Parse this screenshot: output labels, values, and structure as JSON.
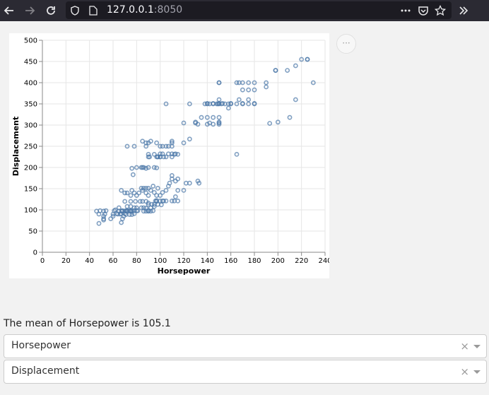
{
  "browser": {
    "url_host": "127.0.0.1",
    "url_port": ":8050",
    "back_icon": "arrow-left-icon",
    "forward_icon": "arrow-right-icon",
    "reload_icon": "reload-icon",
    "more_icon": "ellipsis-icon",
    "pocket_icon": "pocket-icon",
    "star_icon": "star-icon",
    "overflow_icon": "double-chevron-icon"
  },
  "colors": {
    "point": "#4c78a8",
    "toolbar": "#2b2a33"
  },
  "chart_menu_label": "···",
  "summary_text": "The mean of Horsepower is 105.1",
  "dropdowns": [
    {
      "value": "Horsepower",
      "clear": "×"
    },
    {
      "value": "Displacement",
      "clear": "×"
    }
  ],
  "chart_data": {
    "type": "scatter",
    "xlabel": "Horsepower",
    "ylabel": "Displacement",
    "xlim": [
      0,
      240
    ],
    "ylim": [
      0,
      500
    ],
    "xticks": [
      0,
      20,
      40,
      60,
      80,
      100,
      120,
      140,
      160,
      180,
      200,
      220,
      240
    ],
    "yticks": [
      0,
      50,
      100,
      150,
      200,
      250,
      300,
      350,
      400,
      450,
      500
    ],
    "grid": true,
    "marker": "hollow-circle",
    "points": [
      [
        46,
        97
      ],
      [
        48,
        90
      ],
      [
        49,
        98
      ],
      [
        52,
        97
      ],
      [
        52,
        85
      ],
      [
        53,
        90
      ],
      [
        54,
        98
      ],
      [
        48,
        68
      ],
      [
        52,
        79
      ],
      [
        52,
        76
      ],
      [
        58,
        79
      ],
      [
        60,
        85
      ],
      [
        60,
        90
      ],
      [
        61,
        98
      ],
      [
        62,
        100
      ],
      [
        63,
        91
      ],
      [
        64,
        90
      ],
      [
        65,
        97
      ],
      [
        65,
        105
      ],
      [
        66,
        90
      ],
      [
        67,
        97
      ],
      [
        67,
        91
      ],
      [
        67,
        70
      ],
      [
        68,
        97
      ],
      [
        68,
        98
      ],
      [
        68,
        79
      ],
      [
        69,
        85
      ],
      [
        70,
        97
      ],
      [
        70,
        91
      ],
      [
        70,
        120
      ],
      [
        71,
        98
      ],
      [
        71,
        89
      ],
      [
        72,
        97
      ],
      [
        72,
        98
      ],
      [
        72,
        108
      ],
      [
        74,
        98
      ],
      [
        74,
        89
      ],
      [
        75,
        97
      ],
      [
        75,
        98
      ],
      [
        75,
        108
      ],
      [
        75,
        120
      ],
      [
        76,
        89
      ],
      [
        76,
        97
      ],
      [
        78,
        91
      ],
      [
        78,
        98
      ],
      [
        78,
        105
      ],
      [
        79,
        120
      ],
      [
        80,
        98
      ],
      [
        80,
        105
      ],
      [
        81,
        98
      ],
      [
        83,
        120
      ],
      [
        84,
        105
      ],
      [
        85,
        120
      ],
      [
        86,
        105
      ],
      [
        86,
        97
      ],
      [
        88,
        97
      ],
      [
        88,
        120
      ],
      [
        88,
        104
      ],
      [
        90,
        97
      ],
      [
        90,
        98
      ],
      [
        90,
        112
      ],
      [
        90,
        116
      ],
      [
        92,
        97
      ],
      [
        92,
        105
      ],
      [
        93,
        113
      ],
      [
        94,
        98
      ],
      [
        95,
        108
      ],
      [
        95,
        113
      ],
      [
        96,
        121
      ],
      [
        97,
        120
      ],
      [
        98,
        113
      ],
      [
        100,
        121
      ],
      [
        101,
        112
      ],
      [
        102,
        121
      ],
      [
        103,
        121
      ],
      [
        67,
        146
      ],
      [
        70,
        140
      ],
      [
        72,
        140
      ],
      [
        75,
        134
      ],
      [
        76,
        146
      ],
      [
        78,
        140
      ],
      [
        80,
        134
      ],
      [
        82,
        140
      ],
      [
        84,
        151
      ],
      [
        85,
        146
      ],
      [
        86,
        151
      ],
      [
        88,
        151
      ],
      [
        88,
        140
      ],
      [
        90,
        151
      ],
      [
        90,
        134
      ],
      [
        92,
        146
      ],
      [
        94,
        156
      ],
      [
        95,
        141
      ],
      [
        97,
        122
      ],
      [
        97,
        134
      ],
      [
        98,
        151
      ],
      [
        100,
        134
      ],
      [
        102,
        141
      ],
      [
        105,
        121
      ],
      [
        105,
        146
      ],
      [
        107,
        156
      ],
      [
        108,
        163
      ],
      [
        110,
        173
      ],
      [
        110,
        181
      ],
      [
        112,
        121
      ],
      [
        113,
        168
      ],
      [
        115,
        121
      ],
      [
        115,
        173
      ],
      [
        115,
        146
      ],
      [
        120,
        146
      ],
      [
        122,
        163
      ],
      [
        125,
        163
      ],
      [
        132,
        168
      ],
      [
        133,
        163
      ],
      [
        110,
        121
      ],
      [
        113,
        131
      ],
      [
        76,
        198
      ],
      [
        77,
        183
      ],
      [
        80,
        200
      ],
      [
        84,
        200
      ],
      [
        85,
        200
      ],
      [
        86,
        200
      ],
      [
        88,
        198
      ],
      [
        90,
        200
      ],
      [
        95,
        200
      ],
      [
        97,
        199
      ],
      [
        97,
        225
      ],
      [
        98,
        225
      ],
      [
        100,
        225
      ],
      [
        100,
        232
      ],
      [
        100,
        250
      ],
      [
        102,
        232
      ],
      [
        103,
        225
      ],
      [
        105,
        225
      ],
      [
        105,
        250
      ],
      [
        107,
        232
      ],
      [
        107,
        250
      ],
      [
        110,
        225
      ],
      [
        110,
        232
      ],
      [
        110,
        250
      ],
      [
        110,
        258
      ],
      [
        110,
        262
      ],
      [
        112,
        231
      ],
      [
        113,
        232
      ],
      [
        115,
        231
      ],
      [
        88,
        250
      ],
      [
        90,
        258
      ],
      [
        90,
        231
      ],
      [
        90,
        225
      ],
      [
        91,
        225
      ],
      [
        72,
        250
      ],
      [
        78,
        250
      ],
      [
        85,
        262
      ],
      [
        88,
        258
      ],
      [
        92,
        262
      ],
      [
        95,
        231
      ],
      [
        97,
        258
      ],
      [
        98,
        225
      ],
      [
        100,
        225
      ],
      [
        102,
        250
      ],
      [
        120,
        258
      ],
      [
        125,
        267
      ],
      [
        132,
        302
      ],
      [
        130,
        305
      ],
      [
        130,
        307
      ],
      [
        140,
        302
      ],
      [
        140,
        318
      ],
      [
        142,
        305
      ],
      [
        145,
        302
      ],
      [
        145,
        318
      ],
      [
        150,
        302
      ],
      [
        150,
        305
      ],
      [
        150,
        318
      ],
      [
        150,
        307
      ],
      [
        120,
        305
      ],
      [
        135,
        318
      ],
      [
        140,
        351
      ],
      [
        142,
        350
      ],
      [
        145,
        350
      ],
      [
        148,
        350
      ],
      [
        150,
        351
      ],
      [
        150,
        350
      ],
      [
        150,
        360
      ],
      [
        152,
        350
      ],
      [
        153,
        351
      ],
      [
        155,
        350
      ],
      [
        158,
        350
      ],
      [
        160,
        351
      ],
      [
        158,
        340
      ],
      [
        165,
        350
      ],
      [
        167,
        360
      ],
      [
        170,
        350
      ],
      [
        170,
        351
      ],
      [
        175,
        350
      ],
      [
        175,
        360
      ],
      [
        180,
        350
      ],
      [
        180,
        351
      ],
      [
        105,
        350
      ],
      [
        125,
        350
      ],
      [
        138,
        350
      ],
      [
        140,
        350
      ],
      [
        150,
        400
      ],
      [
        150,
        400
      ],
      [
        165,
        400
      ],
      [
        167,
        400
      ],
      [
        170,
        400
      ],
      [
        175,
        400
      ],
      [
        180,
        400
      ],
      [
        170,
        383
      ],
      [
        175,
        383
      ],
      [
        180,
        383
      ],
      [
        190,
        400
      ],
      [
        190,
        390
      ],
      [
        198,
        429
      ],
      [
        208,
        429
      ],
      [
        215,
        440
      ],
      [
        220,
        455
      ],
      [
        225,
        455
      ],
      [
        225,
        455
      ],
      [
        230,
        400
      ],
      [
        193,
        304
      ],
      [
        198,
        429
      ],
      [
        200,
        307
      ],
      [
        210,
        318
      ],
      [
        215,
        360
      ],
      [
        165,
        231
      ],
      [
        149,
        350
      ],
      [
        145,
        351
      ],
      [
        160,
        350
      ]
    ]
  }
}
